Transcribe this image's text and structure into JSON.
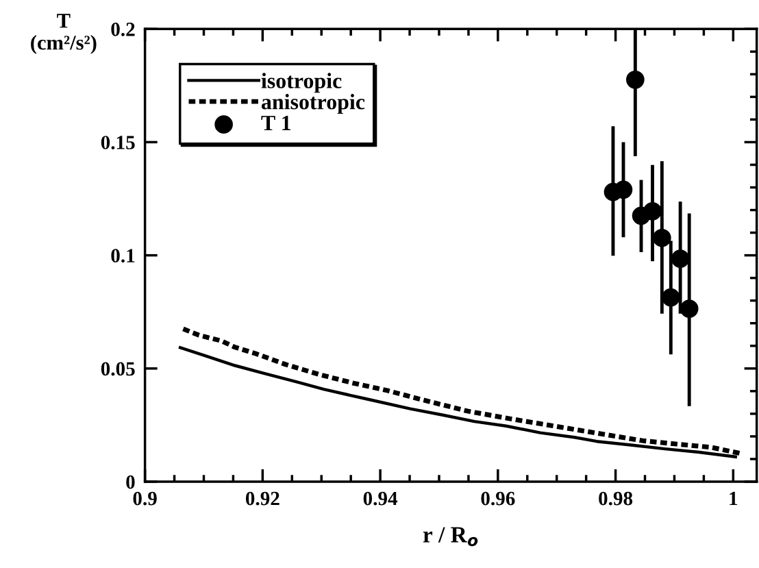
{
  "chart_data": {
    "type": "line",
    "xlabel": "r / R$_{o}$",
    "ylabel": "T\n(cm²/s²)",
    "xlim": [
      0.9,
      1.004
    ],
    "ylim": [
      0,
      0.2
    ],
    "xticks": [
      0.9,
      0.92,
      0.94,
      0.96,
      0.98,
      1
    ],
    "yticks": [
      0,
      0.05,
      0.1,
      0.15,
      0.2
    ],
    "grid": false,
    "legend": "top left",
    "series": [
      {
        "name": "isotropic",
        "line_style": "solid",
        "color": "#000000",
        "x": [
          0.906,
          0.9103,
          0.9153,
          0.92,
          0.9258,
          0.9304,
          0.9374,
          0.9451,
          0.9505,
          0.956,
          0.9614,
          0.9672,
          0.973,
          0.9768,
          0.9826,
          0.9884,
          0.9942,
          1.0004
        ],
        "values": [
          0.0592,
          0.0556,
          0.0513,
          0.048,
          0.0441,
          0.0408,
          0.0367,
          0.0322,
          0.0295,
          0.0266,
          0.0246,
          0.0216,
          0.0196,
          0.0178,
          0.0162,
          0.0145,
          0.013,
          0.011
        ]
      },
      {
        "name": "anisotropic",
        "line_style": "dotted",
        "color": "#000000",
        "x": [
          0.9065,
          0.9092,
          0.913,
          0.9153,
          0.9188,
          0.9239,
          0.9297,
          0.9355,
          0.9413,
          0.9471,
          0.9505,
          0.9548,
          0.9614,
          0.9672,
          0.973,
          0.9788,
          0.9846,
          0.9904,
          0.9962,
          1.0012
        ],
        "values": [
          0.0675,
          0.0647,
          0.0622,
          0.0594,
          0.0566,
          0.0518,
          0.0473,
          0.0435,
          0.0402,
          0.0362,
          0.034,
          0.0312,
          0.0281,
          0.0256,
          0.0231,
          0.0206,
          0.0181,
          0.0166,
          0.0152,
          0.0125
        ]
      },
      {
        "name": "T 1",
        "type": "scatter",
        "marker": "circle",
        "color": "#000000",
        "x": [
          0.97958,
          0.98133,
          0.98335,
          0.98436,
          0.98628,
          0.98789,
          0.9894,
          0.99101,
          0.99253
        ],
        "values": [
          0.128,
          0.129,
          0.1776,
          0.1175,
          0.1195,
          0.1077,
          0.0814,
          0.0985,
          0.0764
        ],
        "errors": [
          [
            0.0998,
            0.157
          ],
          [
            0.108,
            0.15
          ],
          [
            0.1438,
            0.2
          ],
          [
            0.1014,
            0.1333
          ],
          [
            0.0974,
            0.1399
          ],
          [
            0.0742,
            0.1416
          ],
          [
            0.0562,
            0.1064
          ],
          [
            0.0742,
            0.1237
          ],
          [
            0.0334,
            0.1185
          ]
        ]
      }
    ]
  }
}
